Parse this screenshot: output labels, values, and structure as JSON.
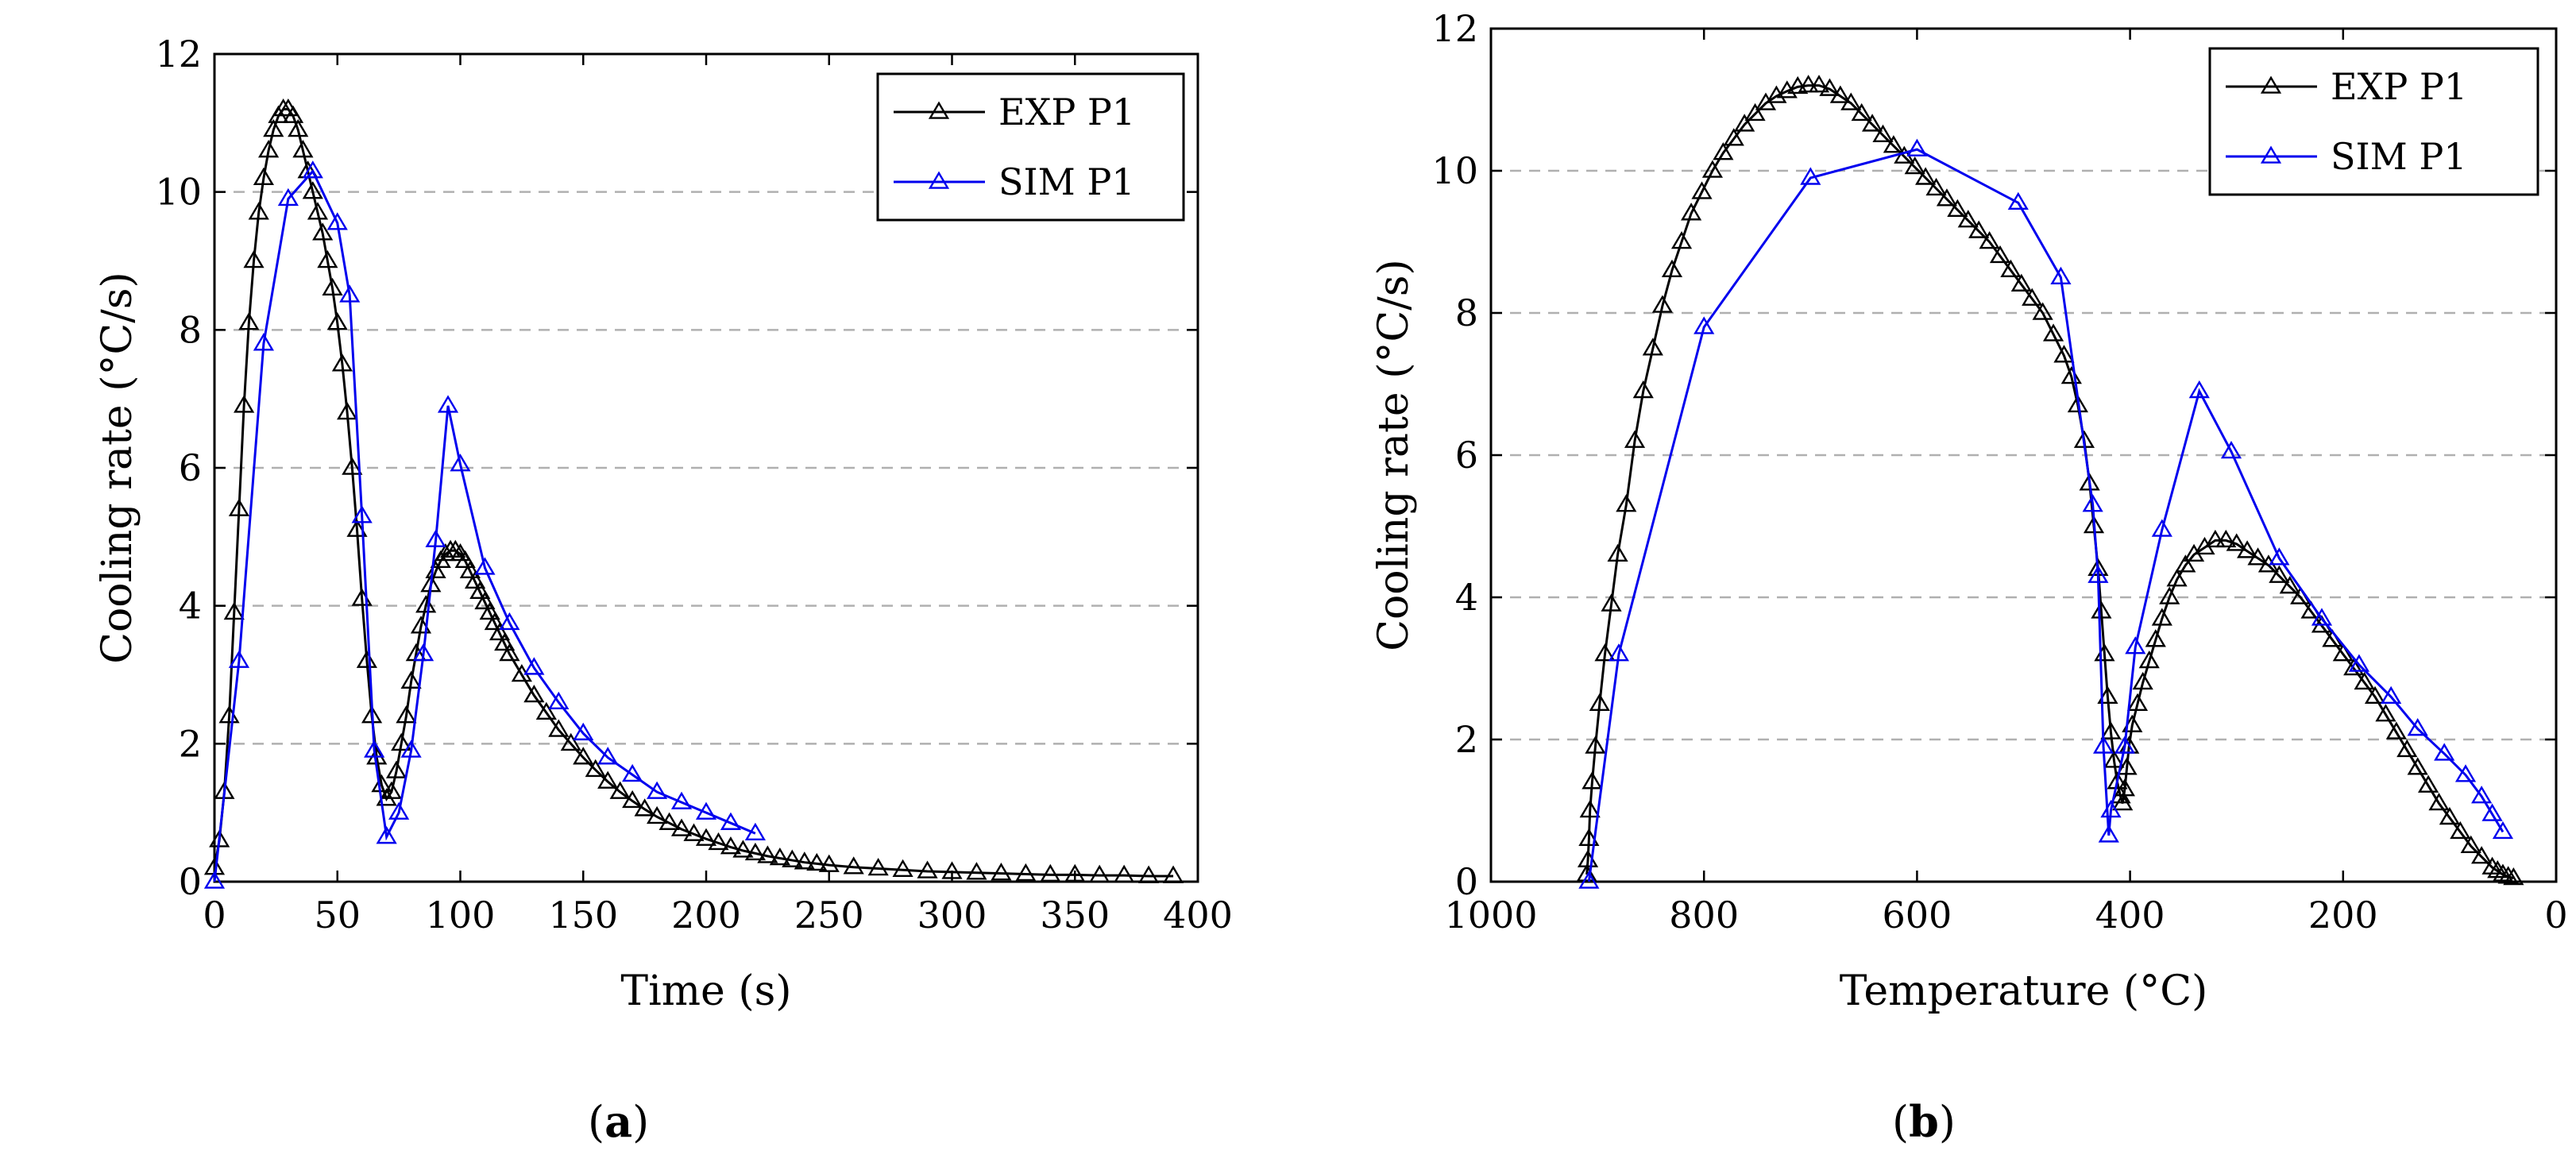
{
  "captions": {
    "a_open": "(",
    "a_letter": "a",
    "a_close": ")",
    "b_open": "(",
    "b_letter": "b",
    "b_close": ")"
  },
  "colors": {
    "exp": "#000000",
    "sim": "#0000ee",
    "grid": "#b0b0b0"
  },
  "chart_data": [
    {
      "id": "a",
      "type": "line",
      "xlabel": "Time (s)",
      "ylabel": "Cooling rate (°C/s)",
      "xlim": [
        0,
        400
      ],
      "ylim": [
        0,
        12
      ],
      "xticks": [
        0,
        50,
        100,
        150,
        200,
        250,
        300,
        350,
        400
      ],
      "yticks": [
        0,
        2,
        4,
        6,
        8,
        10,
        12
      ],
      "grid": "horizontal-dashed",
      "legend_position": "top-right",
      "series": [
        {
          "name": "EXP P1",
          "color": "#000000",
          "marker": "triangle-open",
          "x": [
            0,
            2,
            4,
            6,
            8,
            10,
            12,
            14,
            16,
            18,
            20,
            22,
            24,
            26,
            28,
            30,
            32,
            34,
            36,
            38,
            40,
            42,
            44,
            46,
            48,
            50,
            52,
            54,
            56,
            58,
            60,
            62,
            64,
            66,
            68,
            70,
            72,
            74,
            76,
            78,
            80,
            82,
            84,
            86,
            88,
            90,
            92,
            94,
            96,
            98,
            100,
            102,
            104,
            106,
            108,
            110,
            112,
            114,
            116,
            118,
            120,
            125,
            130,
            135,
            140,
            145,
            150,
            155,
            160,
            165,
            170,
            175,
            180,
            185,
            190,
            195,
            200,
            205,
            210,
            215,
            220,
            225,
            230,
            235,
            240,
            245,
            250,
            260,
            270,
            280,
            290,
            300,
            310,
            320,
            330,
            340,
            350,
            360,
            370,
            380,
            390
          ],
          "y": [
            0.2,
            0.6,
            1.3,
            2.4,
            3.9,
            5.4,
            6.9,
            8.1,
            9.0,
            9.7,
            10.2,
            10.6,
            10.9,
            11.1,
            11.2,
            11.2,
            11.1,
            10.9,
            10.6,
            10.3,
            10.0,
            9.7,
            9.4,
            9.0,
            8.6,
            8.1,
            7.5,
            6.8,
            6.0,
            5.1,
            4.1,
            3.2,
            2.4,
            1.8,
            1.4,
            1.2,
            1.3,
            1.6,
            2.0,
            2.4,
            2.9,
            3.3,
            3.7,
            4.0,
            4.3,
            4.5,
            4.65,
            4.75,
            4.8,
            4.8,
            4.75,
            4.65,
            4.5,
            4.35,
            4.2,
            4.05,
            3.9,
            3.75,
            3.6,
            3.45,
            3.3,
            3.0,
            2.7,
            2.45,
            2.2,
            2.0,
            1.8,
            1.62,
            1.45,
            1.3,
            1.17,
            1.05,
            0.94,
            0.85,
            0.76,
            0.69,
            0.62,
            0.56,
            0.5,
            0.45,
            0.41,
            0.37,
            0.34,
            0.31,
            0.28,
            0.26,
            0.24,
            0.21,
            0.19,
            0.17,
            0.15,
            0.14,
            0.13,
            0.12,
            0.11,
            0.1,
            0.1,
            0.09,
            0.09,
            0.08,
            0.08
          ]
        },
        {
          "name": "SIM P1",
          "color": "#0000ee",
          "marker": "triangle-open",
          "x": [
            0,
            10,
            20,
            30,
            40,
            50,
            55,
            60,
            65,
            70,
            75,
            80,
            85,
            90,
            95,
            100,
            110,
            120,
            130,
            140,
            150,
            160,
            170,
            180,
            190,
            200,
            210,
            220
          ],
          "y": [
            0,
            3.2,
            7.8,
            9.9,
            10.3,
            9.55,
            8.5,
            5.3,
            1.9,
            0.65,
            1.0,
            1.9,
            3.3,
            4.95,
            6.9,
            6.05,
            4.55,
            3.75,
            3.1,
            2.6,
            2.15,
            1.8,
            1.55,
            1.3,
            1.15,
            1.0,
            0.85,
            0.7
          ]
        }
      ]
    },
    {
      "id": "b",
      "type": "line",
      "xlabel": "Temperature (°C)",
      "ylabel": "Cooling rate (°C/s)",
      "xlim": [
        1000,
        0
      ],
      "ylim": [
        0,
        12
      ],
      "xticks": [
        1000,
        800,
        600,
        400,
        200,
        0
      ],
      "yticks": [
        0,
        2,
        4,
        6,
        8,
        10,
        12
      ],
      "grid": "horizontal-dashed",
      "legend_position": "top-right",
      "series": [
        {
          "name": "EXP P1",
          "color": "#000000",
          "marker": "triangle-open",
          "x": [
            910,
            909,
            908,
            907,
            905,
            902,
            898,
            893,
            887,
            881,
            873,
            865,
            857,
            848,
            839,
            830,
            821,
            812,
            802,
            792,
            782,
            772,
            762,
            752,
            742,
            732,
            722,
            712,
            702,
            692,
            682,
            672,
            662,
            652,
            642,
            632,
            622,
            612,
            602,
            592,
            582,
            572,
            562,
            552,
            542,
            532,
            522,
            512,
            502,
            492,
            482,
            472,
            462,
            455,
            449,
            443,
            438,
            434,
            430,
            427,
            424,
            421,
            418,
            415,
            412,
            409,
            407,
            405,
            403,
            401,
            398,
            393,
            388,
            382,
            376,
            370,
            363,
            356,
            348,
            340,
            330,
            320,
            310,
            300,
            290,
            280,
            270,
            260,
            250,
            240,
            230,
            220,
            210,
            200,
            190,
            180,
            170,
            160,
            150,
            140,
            130,
            120,
            110,
            100,
            90,
            80,
            70,
            60,
            55,
            50,
            45,
            40
          ],
          "y": [
            0.1,
            0.3,
            0.6,
            1.0,
            1.4,
            1.9,
            2.5,
            3.2,
            3.9,
            4.6,
            5.3,
            6.2,
            6.9,
            7.5,
            8.1,
            8.6,
            9.0,
            9.4,
            9.7,
            10.0,
            10.25,
            10.45,
            10.65,
            10.8,
            10.95,
            11.05,
            11.12,
            11.18,
            11.2,
            11.2,
            11.15,
            11.05,
            10.95,
            10.8,
            10.65,
            10.5,
            10.35,
            10.2,
            10.05,
            9.9,
            9.75,
            9.6,
            9.45,
            9.3,
            9.15,
            9.0,
            8.8,
            8.6,
            8.4,
            8.2,
            8.0,
            7.7,
            7.4,
            7.1,
            6.7,
            6.2,
            5.6,
            5.0,
            4.4,
            3.8,
            3.2,
            2.6,
            2.1,
            1.7,
            1.4,
            1.2,
            1.1,
            1.3,
            1.6,
            1.9,
            2.2,
            2.5,
            2.8,
            3.1,
            3.4,
            3.7,
            4.0,
            4.25,
            4.45,
            4.6,
            4.7,
            4.8,
            4.8,
            4.75,
            4.65,
            4.55,
            4.45,
            4.3,
            4.15,
            4.0,
            3.8,
            3.6,
            3.4,
            3.2,
            3.0,
            2.8,
            2.6,
            2.35,
            2.1,
            1.85,
            1.6,
            1.35,
            1.1,
            0.9,
            0.7,
            0.5,
            0.35,
            0.2,
            0.15,
            0.1,
            0.07,
            0.05
          ]
        },
        {
          "name": "SIM P1",
          "color": "#0000ee",
          "marker": "triangle-open",
          "x": [
            908,
            880,
            800,
            700,
            600,
            505,
            465,
            435,
            430,
            425,
            420,
            418,
            405,
            395,
            370,
            335,
            305,
            260,
            220,
            185,
            155,
            130,
            105,
            85,
            70,
            60,
            50
          ],
          "y": [
            0,
            3.2,
            7.8,
            9.9,
            10.3,
            9.55,
            8.5,
            5.3,
            4.3,
            1.9,
            0.65,
            1.0,
            1.9,
            3.3,
            4.95,
            6.9,
            6.05,
            4.55,
            3.7,
            3.05,
            2.6,
            2.15,
            1.8,
            1.5,
            1.2,
            0.95,
            0.7
          ]
        }
      ]
    }
  ]
}
